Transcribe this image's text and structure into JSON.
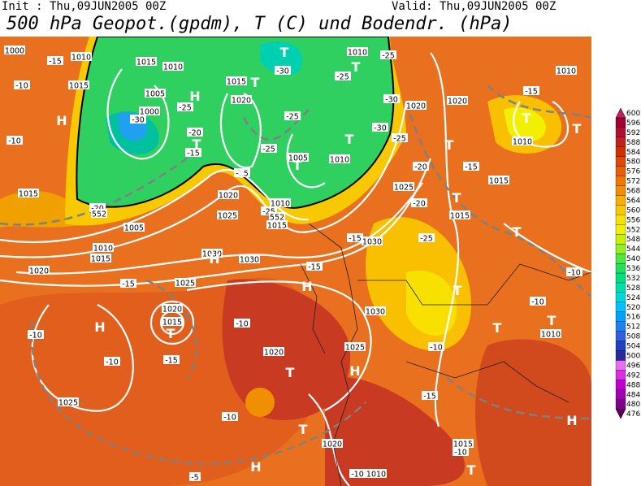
{
  "header": {
    "init": "Init : Thu,09JUN2005 00Z",
    "valid": "Valid: Thu,09JUN2005 00Z",
    "title": "500 hPa Geopot.(gpdm), T (C) und Bodendr. (hPa)"
  },
  "colorbar": {
    "levels": [
      476,
      480,
      484,
      488,
      492,
      496,
      500,
      504,
      508,
      512,
      516,
      520,
      524,
      528,
      532,
      536,
      540,
      544,
      548,
      552,
      556,
      560,
      564,
      568,
      572,
      576,
      580,
      584,
      588,
      592,
      596,
      600
    ],
    "colors": [
      "#5a005a",
      "#80008a",
      "#a000b0",
      "#c000d0",
      "#d830e0",
      "#e870f0",
      "#2a2a9a",
      "#2040c0",
      "#3060e0",
      "#2080f0",
      "#00a0ff",
      "#00c0ff",
      "#00d8d8",
      "#00e0a8",
      "#00e080",
      "#20e060",
      "#50e840",
      "#90f020",
      "#c8f000",
      "#f0f000",
      "#f8e000",
      "#f8c800",
      "#f8b000",
      "#f09000",
      "#f07800",
      "#e86000",
      "#e04800",
      "#d03000",
      "#c02020",
      "#b01030",
      "#a00030",
      "#c02060"
    ]
  },
  "map_labels": [
    "1000",
    "1010",
    "-15",
    "1015",
    "1010",
    "1015",
    "-10",
    "1005",
    "1000",
    "-30",
    "-25",
    "1015",
    "1020",
    "-20",
    "-15",
    "-30",
    "-25",
    "1010",
    "-25",
    "-30",
    "1020",
    "-25",
    "-25",
    "1005",
    "1010",
    "-30",
    "-25",
    "-20",
    "-15",
    "-15",
    "1020",
    "1010",
    "-10",
    "1015",
    "-20",
    "1005",
    "1020",
    "1025",
    "-15",
    "-25",
    "1010",
    "1015",
    "1025",
    "-20",
    "-25",
    "-15",
    "1030",
    "1015",
    "1010",
    "1015",
    "1020",
    "1030",
    "1030",
    "-15",
    "1025",
    "-15",
    "1020",
    "1015",
    "-10",
    "1030",
    "-10",
    "-15",
    "1020",
    "1025",
    "-10",
    "-10",
    "-10",
    "1010",
    "1025",
    "-10",
    "-10",
    "-15",
    "1015",
    "-10",
    "1020",
    "-10",
    "1010",
    "-5",
    "1015",
    "1010",
    "552",
    "552"
  ],
  "centers": [
    "H",
    "H",
    "H",
    "H",
    "H",
    "H",
    "H",
    "H",
    "T",
    "T",
    "T",
    "T",
    "T",
    "T",
    "T",
    "T",
    "T",
    "T",
    "T",
    "T",
    "T",
    "T",
    "T",
    "T",
    "T",
    "T",
    "T"
  ]
}
